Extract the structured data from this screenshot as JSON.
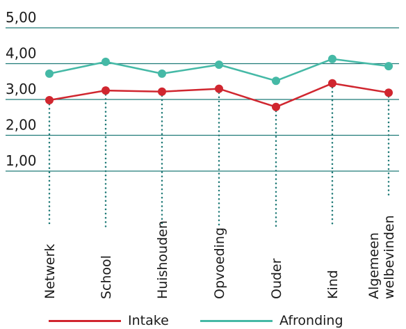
{
  "chart_data": {
    "type": "line",
    "categories": [
      "Netwerk",
      "School",
      "Huishouden",
      "Opvoeding",
      "Ouder",
      "Kind",
      "Algemeen welbevinden"
    ],
    "category_lines": [
      [
        "Netwerk"
      ],
      [
        "School"
      ],
      [
        "Huishouden"
      ],
      [
        "Opvoeding"
      ],
      [
        "Ouder"
      ],
      [
        "Kind"
      ],
      [
        "Algemeen",
        "welbevinden"
      ]
    ],
    "series": [
      {
        "name": "Intake",
        "color": "#d0262f",
        "values": [
          2.98,
          3.25,
          3.22,
          3.3,
          2.79,
          3.45,
          3.19
        ]
      },
      {
        "name": "Afronding",
        "color": "#45b9a6",
        "values": [
          3.72,
          4.05,
          3.72,
          3.97,
          3.52,
          4.13,
          3.93
        ]
      }
    ],
    "yticks": [
      "5,00",
      "4,00",
      "3,00",
      "2,00",
      "1,00"
    ],
    "ytick_values": [
      5,
      4,
      3,
      2,
      1
    ],
    "ylim": [
      1,
      5
    ],
    "grid": true,
    "grid_color": "#1f7a77",
    "guide_color": "#1f7a77",
    "legend_placement": "bottom"
  }
}
